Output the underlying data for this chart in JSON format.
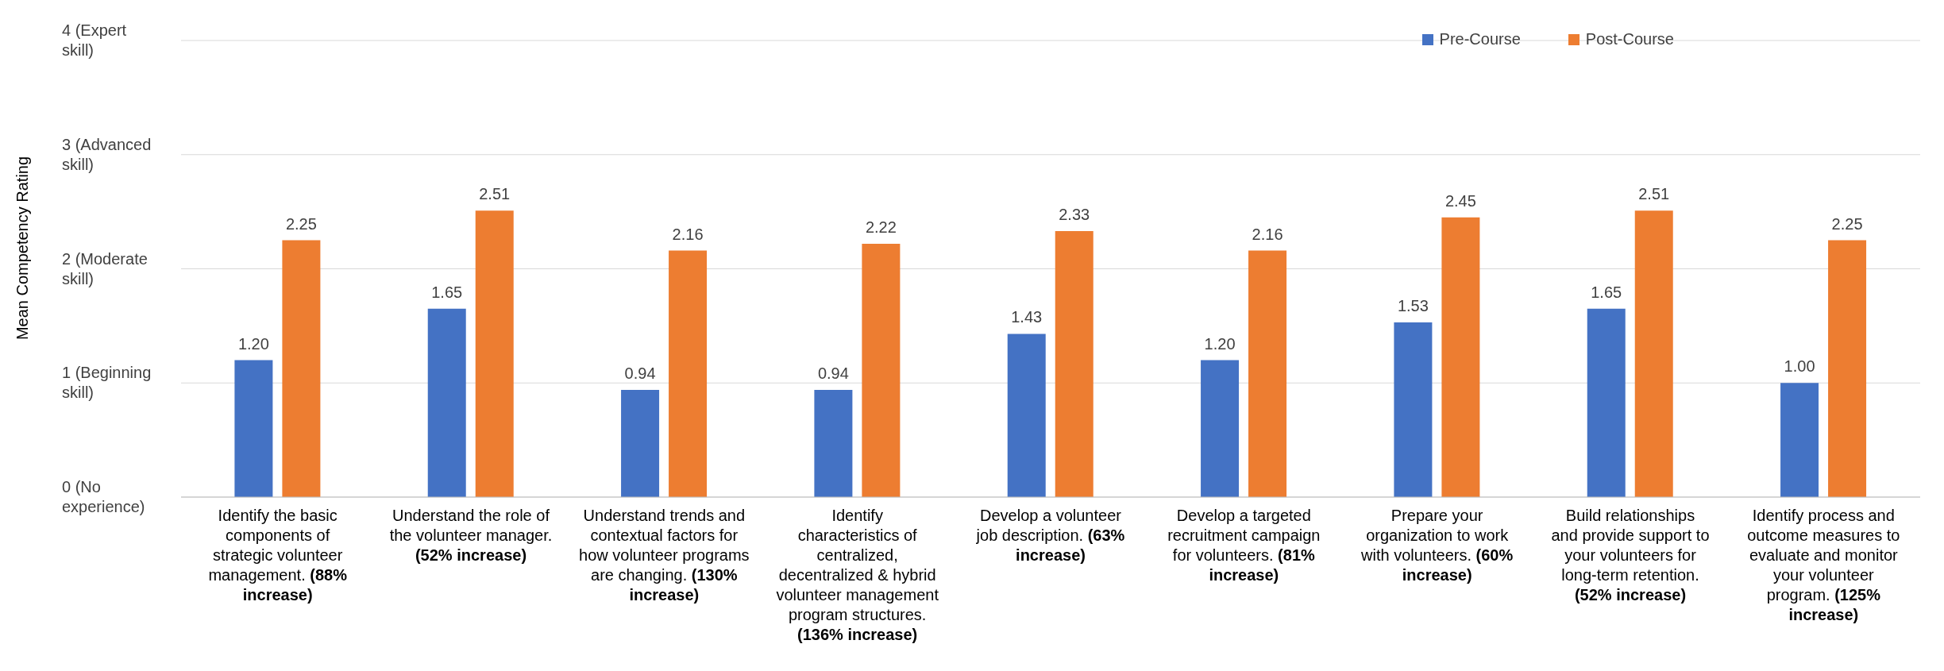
{
  "chart_data": {
    "type": "bar",
    "ylabel": "Mean Competency Rating",
    "categories": [
      "Identify the basic components of strategic volunteer management. (88% increase)",
      "Understand the role of the volunteer manager. (52% increase)",
      "Understand trends and contextual factors for how volunteer programs are changing. (130% increase)",
      "Identify characteristics of centralized, decentralized & hybrid volunteer management program structures. (136% increase)",
      "Develop a volunteer job description. (63% increase)",
      "Develop a targeted recruitment campaign for volunteers. (81% increase)",
      "Prepare your organization to work with volunteers. (60% increase)",
      "Build relationships and provide support to your volunteers for long-term retention. (52% increase)",
      "Identify process and outcome measures to evaluate and monitor your volunteer program. (125% increase)"
    ],
    "series": [
      {
        "name": "Pre-Course",
        "color": "#4472c4",
        "values": [
          1.2,
          1.65,
          0.94,
          0.94,
          1.43,
          1.2,
          1.53,
          1.65,
          1.0
        ],
        "value_labels": [
          "1.20",
          "1.65",
          "0.94",
          "0.94",
          "1.43",
          "1.20",
          "1.53",
          "1.65",
          "1.00"
        ]
      },
      {
        "name": "Post-Course",
        "color": "#ed7d31",
        "values": [
          2.25,
          2.51,
          2.16,
          2.22,
          2.33,
          2.16,
          2.45,
          2.51,
          2.25
        ],
        "value_labels": [
          "2.25",
          "2.51",
          "2.16",
          "2.22",
          "2.33",
          "2.16",
          "2.45",
          "2.51",
          "2.25"
        ]
      }
    ],
    "ylim": [
      0,
      4
    ],
    "yticks": [
      {
        "value": 0,
        "label": "0 (No experience)"
      },
      {
        "value": 1,
        "label": "1 (Beginning skill)"
      },
      {
        "value": 2,
        "label": "2 (Moderate skill)"
      },
      {
        "value": 3,
        "label": "3 (Advanced skill)"
      },
      {
        "value": 4,
        "label": "4 (Expert skill)"
      }
    ],
    "grid": "y",
    "legend": "top right"
  }
}
